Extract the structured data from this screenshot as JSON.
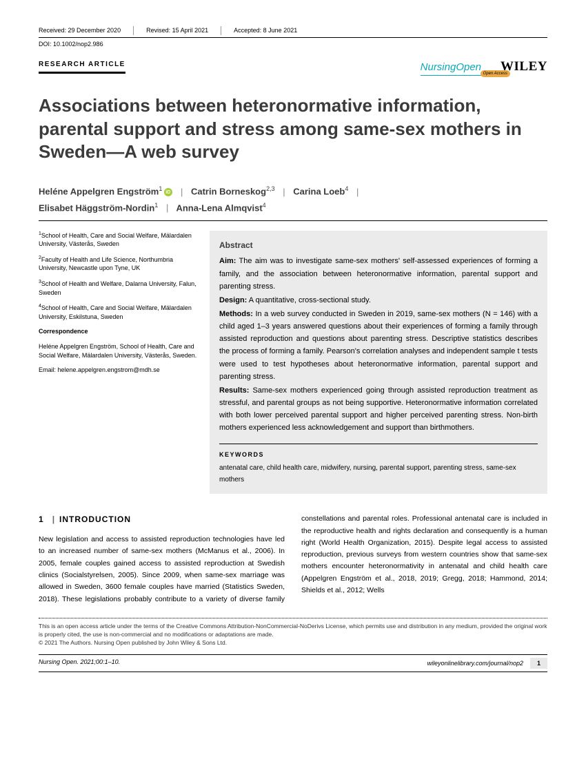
{
  "header": {
    "received": "Received: 29 December 2020",
    "revised": "Revised: 15 April 2021",
    "accepted": "Accepted: 8 June 2021",
    "doi": "DOI: 10.1002/nop2.986",
    "article_type": "RESEARCH ARTICLE",
    "journal_logo": "NursingOpen",
    "open_access": "Open Access",
    "publisher": "WILEY"
  },
  "title": "Associations between heteronormative information, parental support and stress among same-sex mothers in Sweden—A web survey",
  "authors": {
    "a1": "Heléne Appelgren Engström",
    "a1_sup": "1",
    "a2": "Catrin Borneskog",
    "a2_sup": "2,3",
    "a3": "Carina Loeb",
    "a3_sup": "4",
    "a4": "Elisabet Häggström-Nordin",
    "a4_sup": "1",
    "a5": "Anna-Lena Almqvist",
    "a5_sup": "4"
  },
  "affiliations": {
    "aff1": "School of Health, Care and Social Welfare, Mälardalen University, Västerås, Sweden",
    "aff2": "Faculty of Health and Life Science, Northumbria University, Newcastle upon Tyne, UK",
    "aff3": "School of Health and Welfare, Dalarna University, Falun, Sweden",
    "aff4": "School of Health, Care and Social Welfare, Mälardalen University, Eskilstuna, Sweden",
    "corr_head": "Correspondence",
    "corr_body": "Heléne Appelgren Engström, School of Health, Care and Social Welfare, Mälardalen University, Västerås, Sweden.",
    "corr_email": "Email: helene.appelgren.engstrom@mdh.se"
  },
  "abstract": {
    "head": "Abstract",
    "aim_lbl": "Aim:",
    "aim": " The aim was to investigate same-sex mothers' self-assessed experiences of forming a family, and the association between heteronormative information, parental support and parenting stress.",
    "design_lbl": "Design:",
    "design": " A quantitative, cross-sectional study.",
    "methods_lbl": "Methods:",
    "methods": " In a web survey conducted in Sweden in 2019, same-sex mothers (N = 146) with a child aged 1–3 years answered questions about their experiences of forming a family through assisted reproduction and questions about parenting stress. Descriptive statistics describes the process of forming a family. Pearson's correlation analyses and independent sample t tests were used to test hypotheses about heteronormative information, parental support and parenting stress.",
    "results_lbl": "Results:",
    "results": " Same-sex mothers experienced going through assisted reproduction treatment as stressful, and parental groups as not being supportive. Heteronormative information correlated with both lower perceived parental support and higher perceived parenting stress. Non-birth mothers experienced less acknowledgement and support than birthmothers.",
    "kw_head": "KEYWORDS",
    "keywords": "antenatal care, child health care, midwifery, nursing, parental support, parenting stress, same-sex mothers"
  },
  "body": {
    "section_num": "1",
    "section_title": "INTRODUCTION",
    "para": "New legislation and access to assisted reproduction technologies have led to an increased number of same-sex mothers (McManus et al., 2006). In 2005, female couples gained access to assisted reproduction at Swedish clinics (Socialstyrelsen, 2005). Since 2009, when same-sex marriage was allowed in Sweden, 3600 female couples have married (Statistics Sweden, 2018). These legislations probably contribute to a variety of diverse family constellations and parental roles. Professional antenatal care is included in the reproductive health and rights declaration and consequently is a human right (World Health Organization, 2015). Despite legal access to assisted reproduction, previous surveys from western countries show that same-sex mothers encounter heteronormativity in antenatal and child health care (Appelgren Engström et al., 2018, 2019; Gregg, 2018; Hammond, 2014; Shields et al., 2012; Wells"
  },
  "footer": {
    "license1": "This is an open access article under the terms of the Creative Commons Attribution-NonCommercial-NoDerivs License, which permits use and distribution in any medium, provided the original work is properly cited, the use is non-commercial and no modifications or adaptations are made.",
    "license2": "© 2021 The Authors. Nursing Open published by John Wiley & Sons Ltd.",
    "citation": "Nursing Open. 2021;00:1–10.",
    "url": "wileyonlinelibrary.com/journal/nop2",
    "page": "1"
  }
}
